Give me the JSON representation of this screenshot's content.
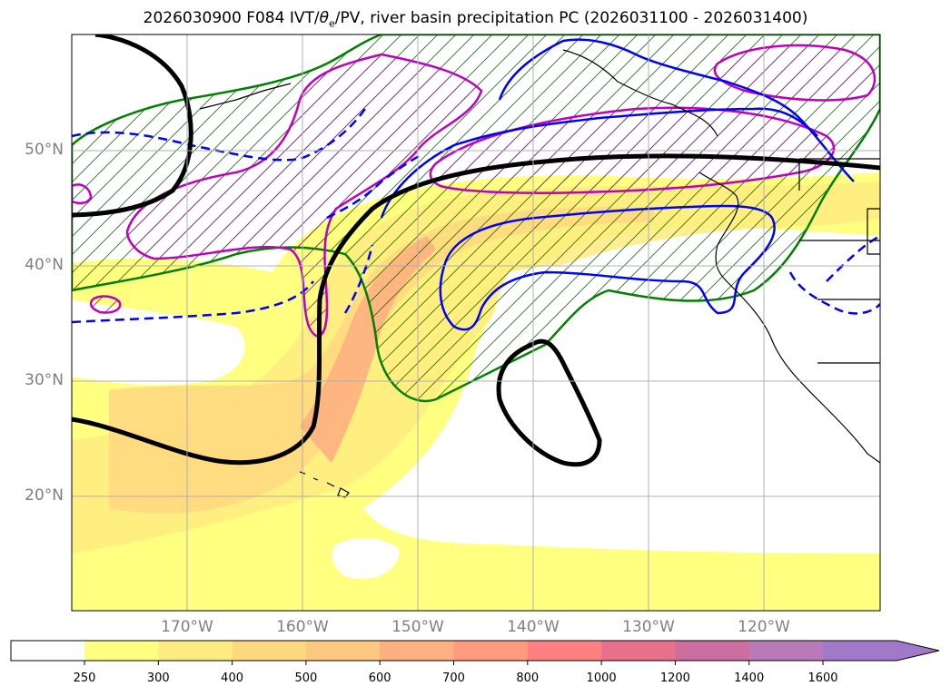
{
  "title": "2026030900 F084 IVT/θe/PV, river basin precipitation PC (2026031100 - 2026031400)",
  "title_parts": {
    "prefix": "2026030900 F084 IVT/",
    "theta": "θ",
    "sub": "e",
    "suffix": "/PV, river basin precipitation PC (2026031100 - 2026031400)"
  },
  "map": {
    "lat_labels": [
      "50°N",
      "40°N",
      "30°N",
      "20°N"
    ],
    "lon_labels": [
      "170°W",
      "160°W",
      "150°W",
      "140°W",
      "130°W",
      "120°W"
    ],
    "extent": {
      "lon_min": -180,
      "lon_max": -110,
      "lat_min": 10,
      "lat_max": 60
    }
  },
  "colorbar": {
    "ticks": [
      "250",
      "300",
      "400",
      "500",
      "600",
      "700",
      "800",
      "1000",
      "1200",
      "1400",
      "1600"
    ],
    "colors": [
      "#ffff80",
      "#ffeb80",
      "#ffd980",
      "#ffc880",
      "#ffb080",
      "#ff9c80",
      "#ff8080",
      "#e8708a",
      "#cc6fa0",
      "#b87ab9",
      "#a07ac8"
    ],
    "extend": "max"
  },
  "colors": {
    "ivt_light": "#ffff80",
    "ivt_mid": "#ffd980",
    "ivt_high": "#ffb080",
    "green_contour": "#008000",
    "magenta_contour": "#bf00bf",
    "blue_contour": "#0000ff",
    "black_contour": "#000000"
  }
}
